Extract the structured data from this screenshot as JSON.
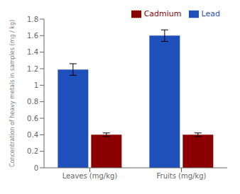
{
  "chart_data": {
    "type": "bar",
    "categories": [
      "Leaves (mg/kg)",
      "Fruits (mg/kg)"
    ],
    "series": [
      {
        "name": "Lead",
        "color": "#1F4FBB",
        "values": [
          1.19,
          1.6
        ],
        "errors": [
          0.07,
          0.07
        ]
      },
      {
        "name": "Cadmium",
        "color": "#8B0000",
        "values": [
          0.4,
          0.4
        ],
        "errors": [
          0.022,
          0.022
        ]
      }
    ],
    "ylabel": "Concentration of heavy metals in samples (mg / kg)",
    "ylim": [
      0,
      1.8
    ],
    "yticks": [
      0,
      0.2,
      0.4,
      0.6,
      0.8,
      1,
      1.2,
      1.4,
      1.6,
      1.8
    ],
    "grid": false,
    "legend": "upper right"
  }
}
